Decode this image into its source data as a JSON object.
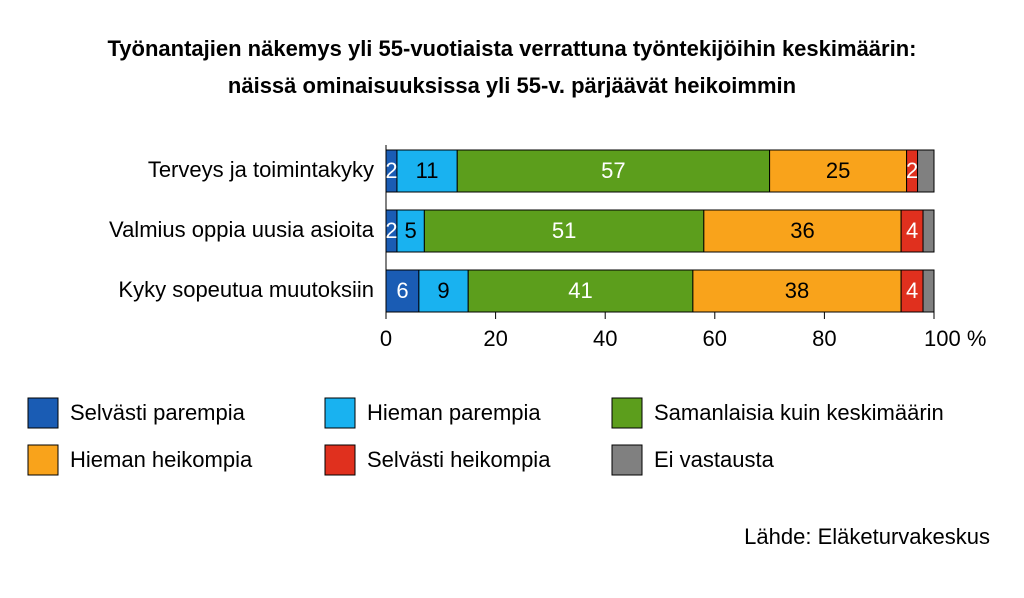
{
  "chart_data": {
    "type": "stacked-bar-horizontal",
    "title": [
      "Työnantajien näkemys yli 55-vuotiaista verrattuna työntekijöihin keskimäärin:",
      "näissä ominaisuuksissa yli 55-v. pärjäävät heikoimmin"
    ],
    "categories": [
      "Terveys ja toimintakyky",
      "Valmius oppia uusia asioita",
      "Kyky sopeutua muutoksiin"
    ],
    "series": [
      {
        "name": "Selvästi parempia",
        "color": "#1a5cb4",
        "label_color": "#ffffff",
        "values": [
          2,
          2,
          6
        ]
      },
      {
        "name": "Hieman parempia",
        "color": "#19b2f0",
        "label_color": "#000000",
        "values": [
          11,
          5,
          9
        ]
      },
      {
        "name": "Samanlaisia kuin keskimäärin",
        "color": "#5c9e1c",
        "label_color": "#ffffff",
        "values": [
          57,
          51,
          41
        ]
      },
      {
        "name": "Hieman heikompia",
        "color": "#f9a31b",
        "label_color": "#000000",
        "values": [
          25,
          36,
          38
        ]
      },
      {
        "name": "Selvästi heikompia",
        "color": "#e0301e",
        "label_color": "#ffffff",
        "values": [
          2,
          4,
          4
        ]
      },
      {
        "name": "Ei vastausta",
        "color": "#808080",
        "show_labels": false,
        "values": [
          3,
          2,
          2
        ]
      }
    ],
    "xlim": [
      0,
      100
    ],
    "xticks": [
      0,
      20,
      40,
      60,
      80,
      {
        "value": 100,
        "label": "100 %"
      }
    ],
    "source": "Lähde: Eläketurvakeskus"
  }
}
